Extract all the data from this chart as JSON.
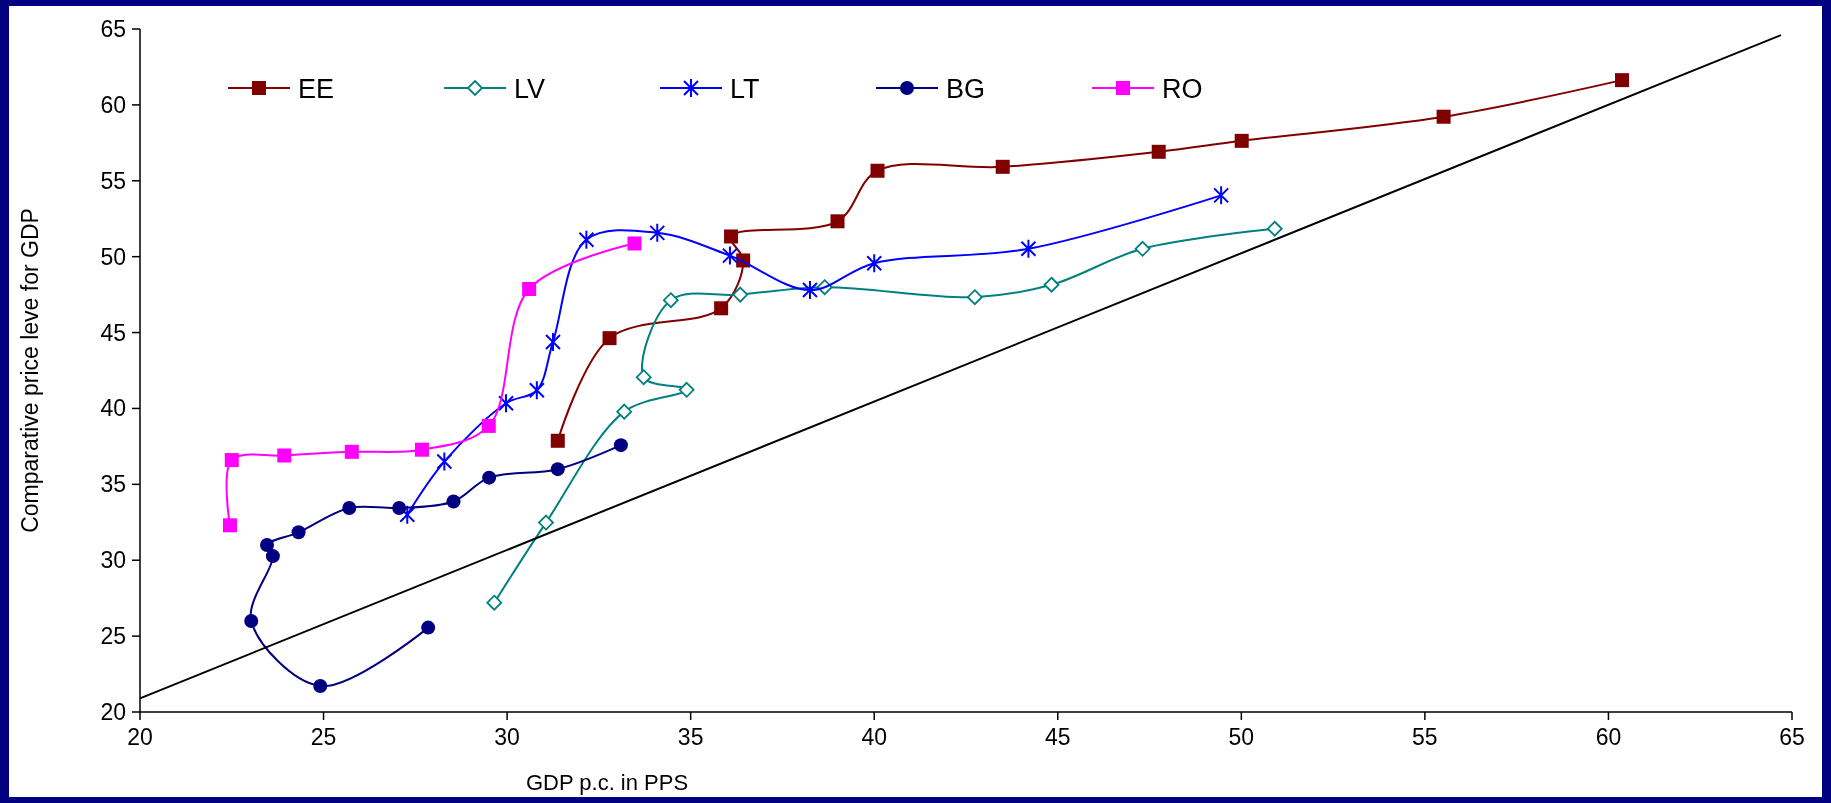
{
  "chart_data": {
    "type": "line",
    "xlabel": "GDP p.c. in PPS",
    "ylabel": "Comparative price leve for GDP",
    "xlim": [
      20,
      65
    ],
    "ylim": [
      20,
      65
    ],
    "xticks": [
      20,
      25,
      30,
      35,
      40,
      45,
      50,
      55,
      60,
      65
    ],
    "yticks": [
      20,
      25,
      30,
      35,
      40,
      45,
      50,
      55,
      60,
      65
    ],
    "grid": false,
    "legend": "top",
    "series": [
      {
        "name": "EE",
        "color": "#800000",
        "marker": "square",
        "x": [
          31.38,
          32.79,
          35.83,
          36.43,
          36.1,
          39.0,
          40.09,
          43.5,
          47.75,
          50.01,
          55.51,
          60.37
        ],
        "values": [
          37.87,
          44.63,
          46.6,
          49.75,
          51.33,
          52.33,
          55.66,
          55.92,
          56.91,
          57.63,
          59.22,
          61.63
        ]
      },
      {
        "name": "LV",
        "color": "#008080",
        "marker": "diamond",
        "x": [
          29.65,
          31.06,
          33.19,
          34.89,
          33.72,
          34.46,
          36.35,
          38.65,
          42.74,
          44.83,
          47.31,
          50.91
        ],
        "values": [
          27.2,
          32.48,
          39.79,
          41.23,
          42.06,
          47.13,
          47.5,
          47.99,
          47.33,
          48.15,
          50.52,
          51.84
        ]
      },
      {
        "name": "LT",
        "color": "#0000ff",
        "marker": "cross",
        "x": [
          27.28,
          28.29,
          29.97,
          30.81,
          31.25,
          32.16,
          34.09,
          36.07,
          38.25,
          40.0,
          44.2,
          49.45
        ],
        "values": [
          33.0,
          36.5,
          40.34,
          41.2,
          44.38,
          51.11,
          51.57,
          50.07,
          47.8,
          49.57,
          50.52,
          54.04
        ]
      },
      {
        "name": "BG",
        "color": "#000080",
        "marker": "circle",
        "x": [
          27.85,
          24.91,
          23.03,
          23.62,
          23.46,
          24.32,
          25.7,
          27.06,
          28.54,
          29.51,
          31.38,
          33.1
        ],
        "values": [
          25.56,
          21.71,
          26.0,
          30.27,
          31.0,
          31.84,
          33.44,
          33.44,
          33.87,
          35.44,
          36.0,
          37.58
        ]
      },
      {
        "name": "RO",
        "color": "#ff00ff",
        "marker": "square",
        "x": [
          22.45,
          22.5,
          23.93,
          25.77,
          27.68,
          29.5,
          30.6,
          33.47
        ],
        "values": [
          32.3,
          36.6,
          36.9,
          37.14,
          37.28,
          38.85,
          47.87,
          50.87
        ]
      },
      {
        "color": "#000000",
        "marker": "none",
        "x": [
          20,
          64.7
        ],
        "values": [
          20.9,
          64.6
        ]
      }
    ]
  }
}
